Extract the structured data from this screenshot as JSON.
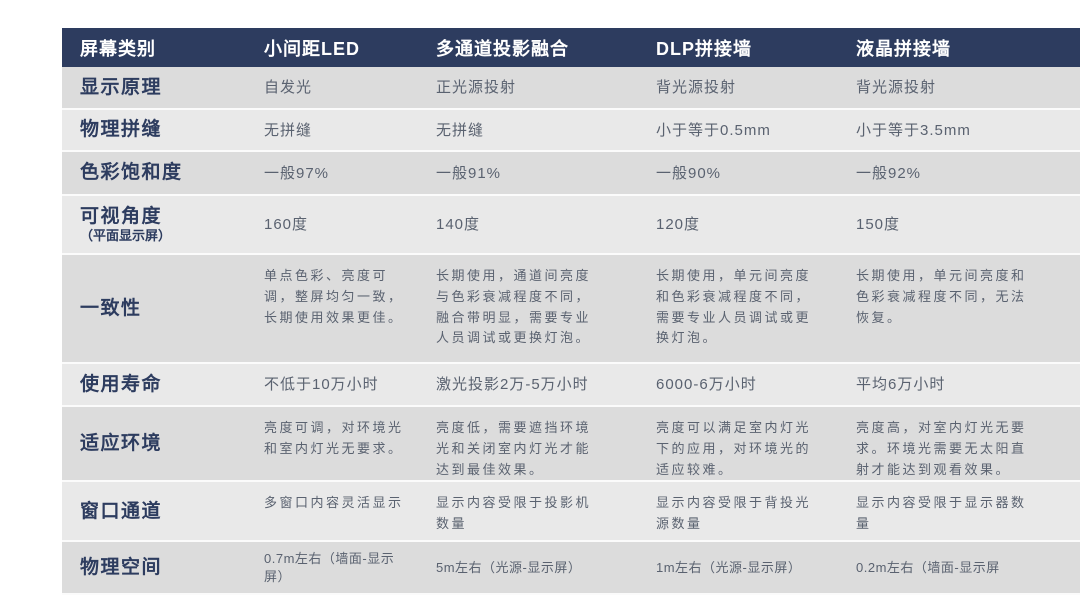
{
  "colors": {
    "header_bg": "#2d3c5f",
    "header_fg": "#ffffff",
    "row_dark": "#dcdcdc",
    "row_light": "#e9e9e9",
    "label_color": "#2d3c5f",
    "cell_color": "#5a6270"
  },
  "table": {
    "header": [
      "屏幕类别",
      "小间距LED",
      "多通道投影融合",
      "DLP拼接墙",
      "液晶拼接墙"
    ],
    "rows": [
      {
        "label": "显示原理",
        "cells": [
          "自发光",
          "正光源投射",
          "背光源投射",
          "背光源投射"
        ]
      },
      {
        "label": "物理拼缝",
        "cells": [
          "无拼缝",
          "无拼缝",
          "小于等于0.5mm",
          "小于等于3.5mm"
        ]
      },
      {
        "label": "色彩饱和度",
        "cells": [
          "一般97%",
          "一般91%",
          "一般90%",
          "一般92%"
        ]
      },
      {
        "label": "可视角度",
        "sublabel": "（平面显示屏）",
        "cells": [
          "160度",
          "140度",
          "120度",
          "150度"
        ]
      },
      {
        "label": "一致性",
        "cells": [
          "单点色彩、亮度可调，整屏均匀一致，长期使用效果更佳。",
          "长期使用，通道间亮度与色彩衰减程度不同，融合带明显，需要专业人员调试或更换灯泡。",
          "长期使用，单元间亮度和色彩衰减程度不同，需要专业人员调试或更换灯泡。",
          "长期使用，单元间亮度和色彩衰减程度不同，无法恢复。"
        ]
      },
      {
        "label": "使用寿命",
        "cells": [
          "不低于10万小时",
          "激光投影2万-5万小时",
          "6000-6万小时",
          "平均6万小时"
        ]
      },
      {
        "label": "适应环境",
        "cells": [
          "亮度可调，对环境光和室内灯光无要求。",
          "亮度低，需要遮挡环境光和关闭室内灯光才能达到最佳效果。",
          "亮度可以满足室内灯光下的应用，对环境光的适应较难。",
          "亮度高，对室内灯光无要求。环境光需要无太阳直射才能达到观看效果。"
        ]
      },
      {
        "label": "窗口通道",
        "cells": [
          "多窗口内容灵活显示",
          "显示内容受限于投影机数量",
          "显示内容受限于背投光源数量",
          "显示内容受限于显示器数量"
        ]
      },
      {
        "label": "物理空间",
        "cells": [
          "0.7m左右（墙面-显示屏）",
          "5m左右（光源-显示屏）",
          "1m左右（光源-显示屏）",
          "0.2m左右（墙面-显示屏"
        ]
      }
    ]
  }
}
